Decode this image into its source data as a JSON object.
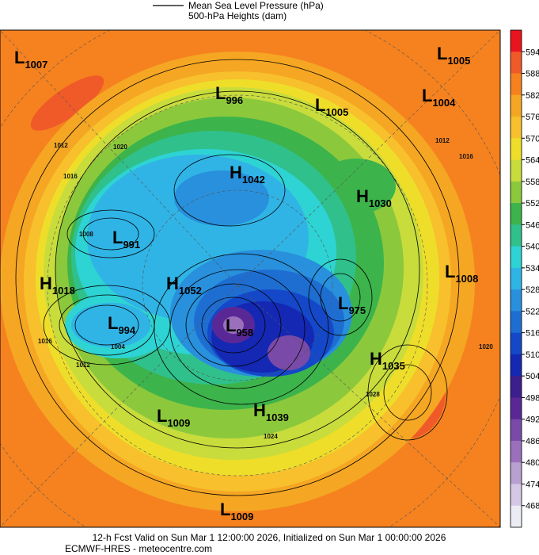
{
  "legend": {
    "line_label": "Mean Sea Level Pressure (hPa)",
    "fill_label": "500-hPa Heights (dam)"
  },
  "colorbar": {
    "ticks": [
      594,
      588,
      582,
      576,
      570,
      564,
      558,
      552,
      546,
      540,
      534,
      528,
      522,
      516,
      510,
      504,
      498,
      492,
      486,
      480,
      474,
      468
    ],
    "colors": [
      "#e8141e",
      "#f05a28",
      "#f5821f",
      "#f5a623",
      "#f7c02c",
      "#eede2a",
      "#c8dc3c",
      "#8cc83c",
      "#3cb44b",
      "#30c08c",
      "#2ed3d3",
      "#30b4e6",
      "#2890dc",
      "#1e6ed2",
      "#1448c8",
      "#1428b4",
      "#3c1e8c",
      "#5a2896",
      "#7a4aa8",
      "#9a70bc",
      "#b8a0d0",
      "#d4c8e4",
      "#ececf4"
    ]
  },
  "centers": [
    {
      "type": "L",
      "value": 1007
    },
    {
      "type": "L",
      "value": 996
    },
    {
      "type": "L",
      "value": 1005
    },
    {
      "type": "L",
      "value": 1005
    },
    {
      "type": "L",
      "value": 1004
    },
    {
      "type": "H",
      "value": 1042
    },
    {
      "type": "H",
      "value": 1030
    },
    {
      "type": "L",
      "value": 991
    },
    {
      "type": "L",
      "value": 1008
    },
    {
      "type": "H",
      "value": 1018
    },
    {
      "type": "H",
      "value": 1052
    },
    {
      "type": "L",
      "value": 975
    },
    {
      "type": "L",
      "value": 994
    },
    {
      "type": "L",
      "value": 958
    },
    {
      "type": "H",
      "value": 1035
    },
    {
      "type": "H",
      "value": 1039
    },
    {
      "type": "L",
      "value": 1009
    },
    {
      "type": "L",
      "value": 1009
    }
  ],
  "contour_labels": [
    1012,
    1016,
    1020,
    1008,
    1004,
    1012,
    1016,
    1024,
    1028,
    1012,
    1016,
    1020
  ],
  "footer": {
    "line1": "12-h Fcst Valid on Sun Mar  1 12:00:00 2026, Initialized on Sun Mar  1 00:00:00 2026",
    "line2": "ECMWF-HRES - meteocentre.com"
  }
}
